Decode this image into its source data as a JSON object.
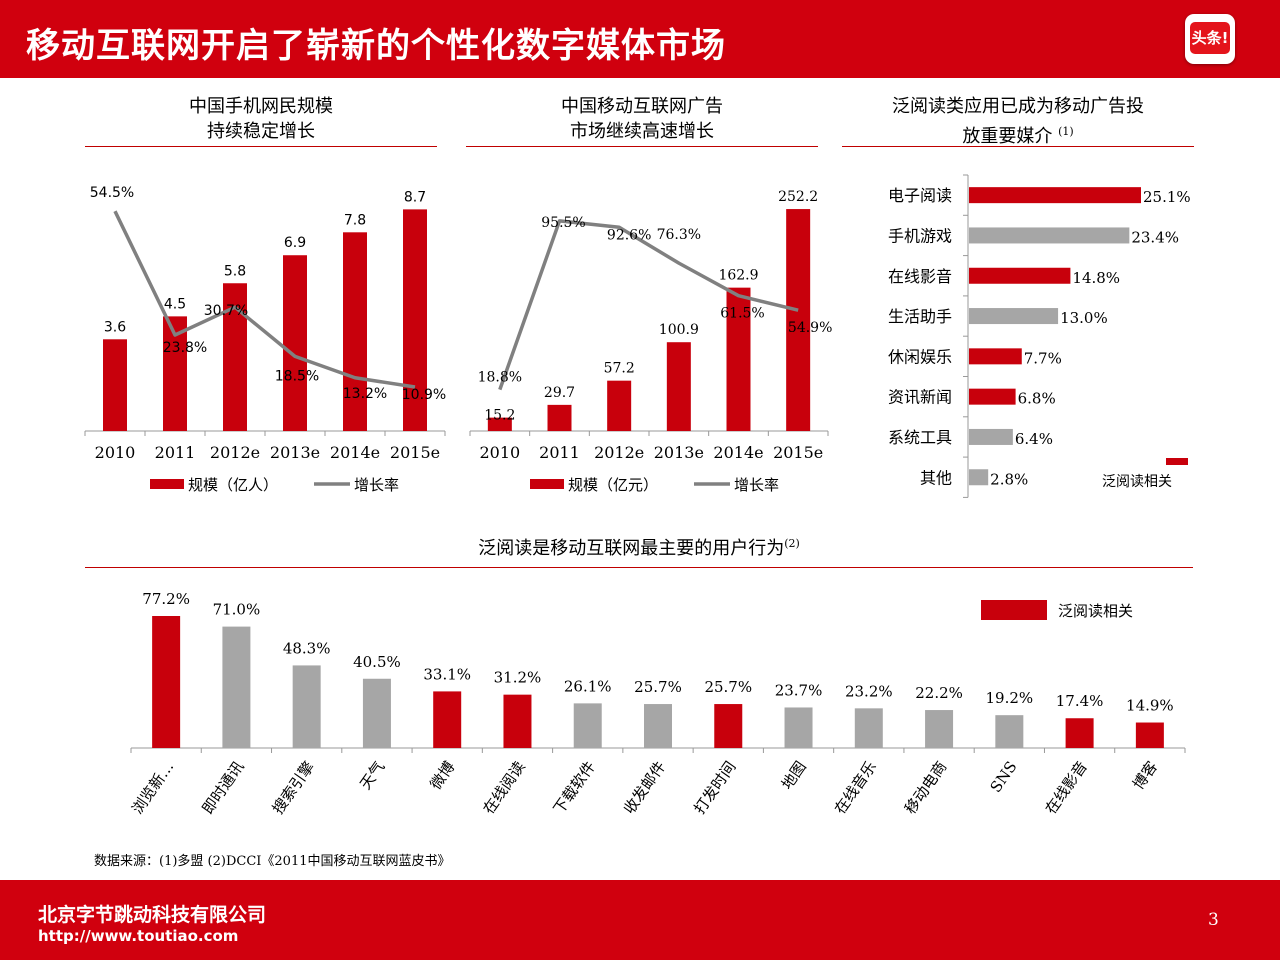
{
  "header": {
    "title": "移动互联网开启了崭新的个性化数字媒体市场",
    "logo_text": "头条!"
  },
  "footer": {
    "company": "北京字节跳动科技有限公司",
    "url": "http://www.toutiao.com",
    "page": "3"
  },
  "source": "数据来源：(1)多盟 (2)DCCI《2011中国移动互联网蓝皮书》",
  "colors": {
    "red": "#c8000c",
    "gray": "#a6a6a6",
    "line": "#808080",
    "header": "#d0000e"
  },
  "chart_data": [
    {
      "type": "bar",
      "title_lines": [
        "中国手机网民规模",
        "持续稳定增长"
      ],
      "categories": [
        "2010",
        "2011",
        "2012e",
        "2013e",
        "2014e",
        "2015e"
      ],
      "series": [
        {
          "name": "规模（亿人）",
          "type": "bar",
          "values": [
            3.6,
            4.5,
            5.8,
            6.9,
            7.8,
            8.7
          ],
          "labels": [
            "3.6",
            "4.5",
            "5.8",
            "6.9",
            "7.8",
            "8.7"
          ]
        },
        {
          "name": "增长率",
          "type": "line",
          "values": [
            54.5,
            23.8,
            30.7,
            18.5,
            13.2,
            10.9
          ],
          "labels": [
            "54.5%",
            "23.8%",
            "30.7%",
            "18.5%",
            "13.2%",
            "10.9%"
          ]
        }
      ],
      "ylim": [
        0,
        9.5
      ],
      "ylim2": [
        0,
        60
      ]
    },
    {
      "type": "bar",
      "title_lines": [
        "中国移动互联网广告",
        "市场继续高速增长"
      ],
      "categories": [
        "2010",
        "2011",
        "2012e",
        "2013e",
        "2014e",
        "2015e"
      ],
      "series": [
        {
          "name": "规模（亿元）",
          "type": "bar",
          "values": [
            15.2,
            29.7,
            57.2,
            100.9,
            162.9,
            252.2
          ],
          "labels": [
            "15.2",
            "29.7",
            "57.2",
            "100.9",
            "162.9",
            "252.2"
          ]
        },
        {
          "name": "增长率",
          "type": "line",
          "values": [
            18.8,
            95.5,
            92.6,
            76.3,
            61.5,
            54.9
          ],
          "labels": [
            "18.8%",
            "95.5%",
            "92.6%",
            "76.3%",
            "61.5%",
            "54.9%"
          ]
        }
      ],
      "ylim": [
        0,
        275
      ],
      "ylim2": [
        0,
        110
      ]
    },
    {
      "type": "bar",
      "orientation": "horizontal",
      "title_lines": [
        "泛阅读类应用已成为移动广告投",
        "放重要媒介"
      ],
      "title_note": "(1)",
      "categories": [
        "电子阅读",
        "手机游戏",
        "在线影音",
        "生活助手",
        "休闲娱乐",
        "资讯新闻",
        "系统工具",
        "其他"
      ],
      "values": [
        25.1,
        23.4,
        14.8,
        13.0,
        7.7,
        6.8,
        6.4,
        2.8
      ],
      "labels": [
        "25.1%",
        "23.4%",
        "14.8%",
        "13.0%",
        "7.7%",
        "6.8%",
        "6.4%",
        "2.8%"
      ],
      "highlight": [
        true,
        false,
        true,
        false,
        true,
        true,
        false,
        false
      ],
      "legend": "泛阅读相关",
      "xlim": [
        0,
        26
      ]
    },
    {
      "type": "bar",
      "title": "泛阅读是移动互联网最主要的用户行为",
      "title_note": "(2)",
      "categories": [
        "浏览新…",
        "即时通讯",
        "搜索引擎",
        "天气",
        "微博",
        "在线阅读",
        "下载软件",
        "收发邮件",
        "打发时间",
        "地图",
        "在线音乐",
        "移动电商",
        "SNS",
        "在线影音",
        "博客"
      ],
      "values": [
        77.2,
        71.0,
        48.3,
        40.5,
        33.1,
        31.2,
        26.1,
        25.7,
        25.7,
        23.7,
        23.2,
        22.2,
        19.2,
        17.4,
        14.9
      ],
      "labels": [
        "77.2%",
        "71.0%",
        "48.3%",
        "40.5%",
        "33.1%",
        "31.2%",
        "26.1%",
        "25.7%",
        "25.7%",
        "23.7%",
        "23.2%",
        "22.2%",
        "19.2%",
        "17.4%",
        "14.9%"
      ],
      "highlight": [
        true,
        false,
        false,
        false,
        true,
        true,
        false,
        false,
        true,
        false,
        false,
        false,
        false,
        true,
        true
      ],
      "legend": "泛阅读相关",
      "ylim": [
        0,
        80
      ]
    }
  ]
}
